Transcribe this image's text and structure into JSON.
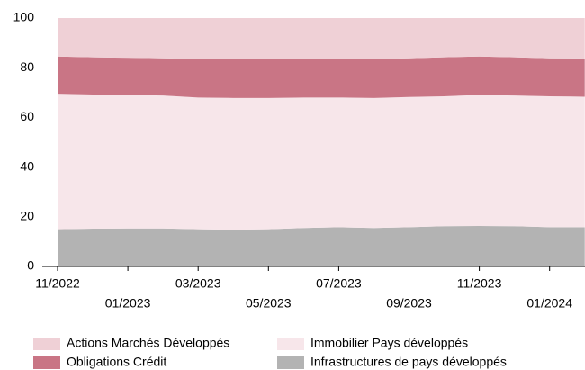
{
  "chart_data": {
    "type": "stacked-area",
    "categories": [
      "11/2022",
      null,
      "01/2023",
      null,
      "03/2023",
      null,
      "05/2023",
      null,
      "07/2023",
      null,
      "09/2023",
      null,
      "11/2023",
      null,
      "01/2024",
      null
    ],
    "series": [
      {
        "name": "Infrastructures de pays développés",
        "color": "#b3b3b3",
        "values": [
          15,
          15.2,
          15.3,
          15.3,
          15,
          14.8,
          15,
          15.5,
          15.8,
          15.5,
          15.8,
          16.2,
          16.3,
          16.2,
          15.8,
          15.8
        ]
      },
      {
        "name": "Immobilier Pays développés",
        "color": "#f7e6ea",
        "values": [
          54.5,
          54,
          53.7,
          53.5,
          53,
          53,
          52.8,
          52.5,
          52.2,
          52.3,
          52.4,
          52.3,
          52.7,
          52.6,
          52.7,
          52.5
        ]
      },
      {
        "name": "Obligations Crédit",
        "color": "#c97585",
        "values": [
          15,
          15,
          15,
          15,
          15.5,
          15.7,
          15.7,
          15.5,
          15.5,
          15.7,
          15.6,
          15.7,
          15.5,
          15.4,
          15.3,
          15.4
        ]
      },
      {
        "name": "Actions Marchés Développés",
        "color": "#efd0d6",
        "values": [
          15.5,
          15.8,
          16,
          16.2,
          16.5,
          16.5,
          16.5,
          16.5,
          16.5,
          16.5,
          16.2,
          15.8,
          15.5,
          15.8,
          16.2,
          16.3
        ]
      }
    ],
    "ylim": [
      0,
      100
    ],
    "yticks": [
      0,
      20,
      40,
      60,
      80,
      100
    ],
    "grid": false
  }
}
